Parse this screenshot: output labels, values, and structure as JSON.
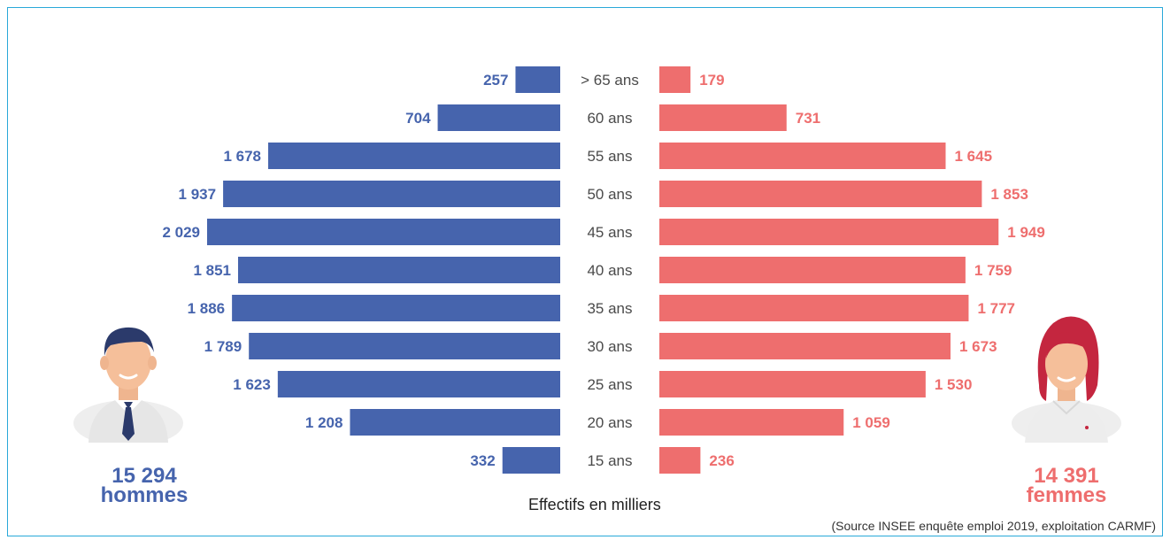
{
  "chart_data": {
    "type": "bar",
    "categories": [
      "> 65  ans",
      "60 ans",
      "55 ans",
      "50 ans",
      "45 ans",
      "40 ans",
      "35 ans",
      "30 ans",
      "25 ans",
      "20 ans",
      "15 ans"
    ],
    "series": [
      {
        "name": "hommes",
        "values": [
          257,
          704,
          1678,
          1937,
          2029,
          1851,
          1886,
          1789,
          1623,
          1208,
          332
        ],
        "labels": [
          "257",
          "704",
          "1 678",
          "1 937",
          "2 029",
          "1 851",
          "1 886",
          "1 789",
          "1 623",
          "1 208",
          "332"
        ],
        "color": "#4664ad"
      },
      {
        "name": "femmes",
        "values": [
          179,
          731,
          1645,
          1853,
          1949,
          1759,
          1777,
          1673,
          1530,
          1059,
          236
        ],
        "labels": [
          "179",
          "731",
          "1 645",
          "1 853",
          "1 949",
          "1 759",
          "1 777",
          "1 673",
          "1 530",
          "1 059",
          "236"
        ],
        "color": "#ee6e6e"
      }
    ],
    "xlabel": "Effectifs en milliers",
    "source": "(Source INSEE enquête emploi 2019, exploitation CARMF)",
    "totals": {
      "men_value": "15 294",
      "men_label": "hommes",
      "women_value": "14 391",
      "women_label": "femmes"
    }
  }
}
